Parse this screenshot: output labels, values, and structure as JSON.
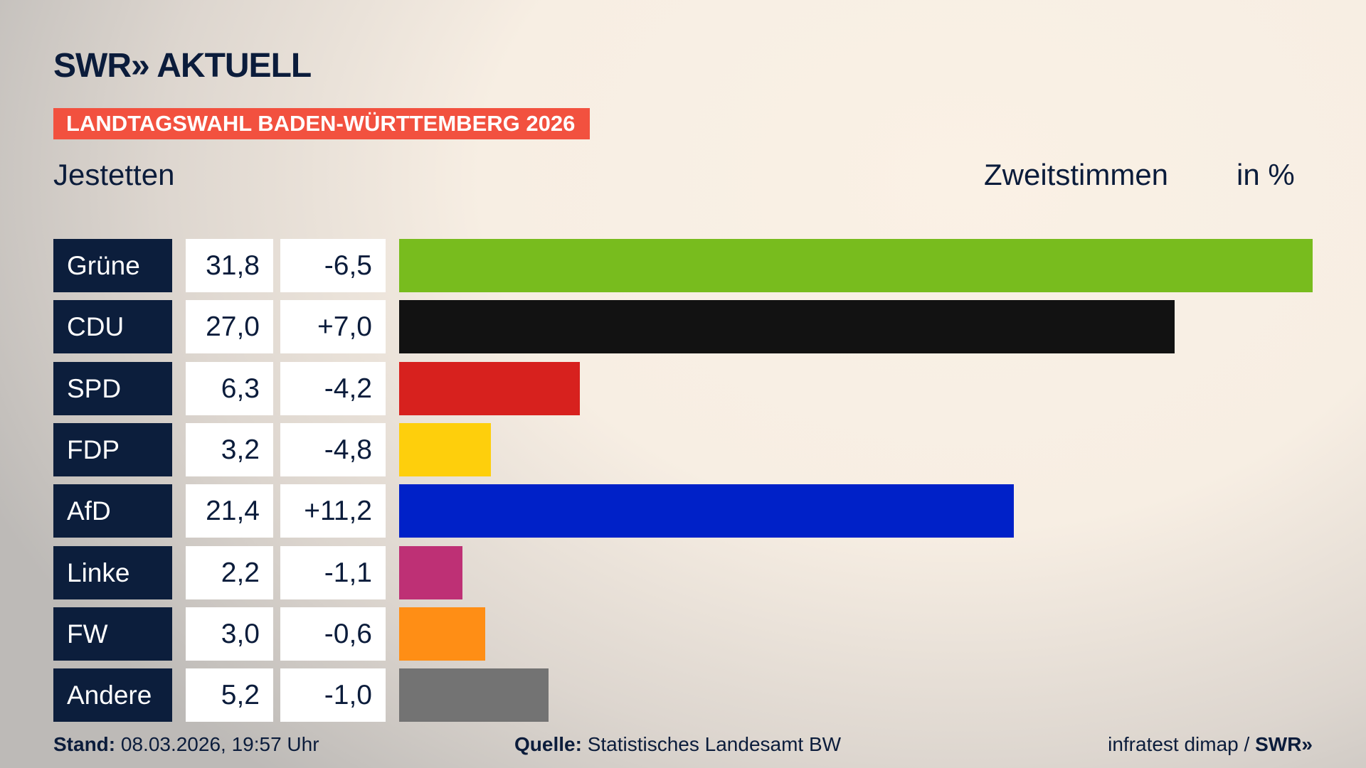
{
  "header": {
    "logo": "SWR» AKTUELL",
    "banner": "LANDTAGSWAHL BADEN-WÜRTTEMBERG 2026",
    "region": "Jestetten",
    "vote_type": "Zweitstimmen",
    "unit": "in %"
  },
  "chart_data": {
    "type": "bar",
    "orientation": "horizontal",
    "categories": [
      "Grüne",
      "CDU",
      "SPD",
      "FDP",
      "AfD",
      "Linke",
      "FW",
      "Andere"
    ],
    "values": [
      "31,8",
      "27,0",
      "6,3",
      "3,2",
      "21,4",
      "2,2",
      "3,0",
      "5,2"
    ],
    "changes": [
      "-6,5",
      "+7,0",
      "-4,2",
      "-4,8",
      "+11,2",
      "-1,1",
      "-0,6",
      "-1,0"
    ],
    "numeric_values": [
      31.8,
      27.0,
      6.3,
      3.2,
      21.4,
      2.2,
      3.0,
      5.2
    ],
    "colors": [
      "#78bc1e",
      "#121212",
      "#d7211e",
      "#fecf0c",
      "#0021c8",
      "#be3075",
      "#ff8e15",
      "#737373"
    ]
  },
  "footer": {
    "stand_label": "Stand:",
    "stand_value": "08.03.2026, 19:57 Uhr",
    "source_label": "Quelle:",
    "source_value": "Statistisches Landesamt BW",
    "credit": "infratest dimap / ",
    "credit_logo": "SWR»"
  }
}
